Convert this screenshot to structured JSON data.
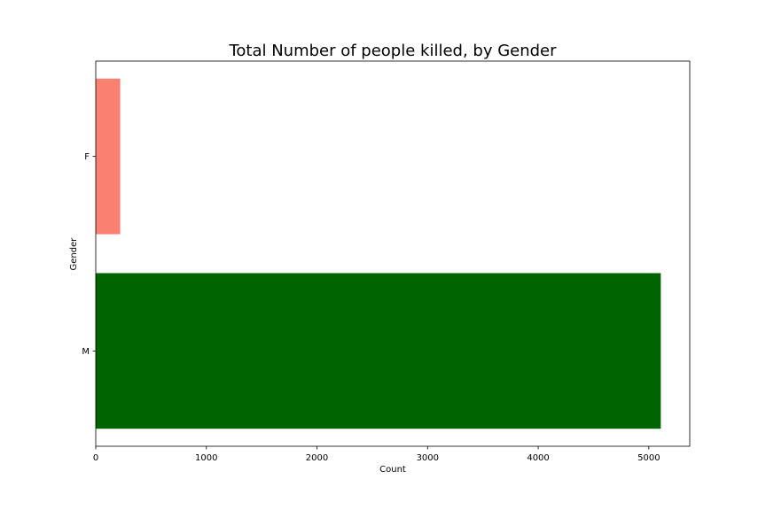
{
  "chart_data": {
    "type": "bar",
    "orientation": "horizontal",
    "title": "Total Number of people killed, by Gender",
    "xlabel": "Count",
    "ylabel": "Gender",
    "categories": [
      "M",
      "F"
    ],
    "values": [
      5108,
      221
    ],
    "colors": [
      "#006400",
      "#fa8072"
    ],
    "xlim": [
      0,
      5370
    ],
    "xticks": [
      0,
      1000,
      2000,
      3000,
      4000,
      5000
    ],
    "grid": false
  }
}
